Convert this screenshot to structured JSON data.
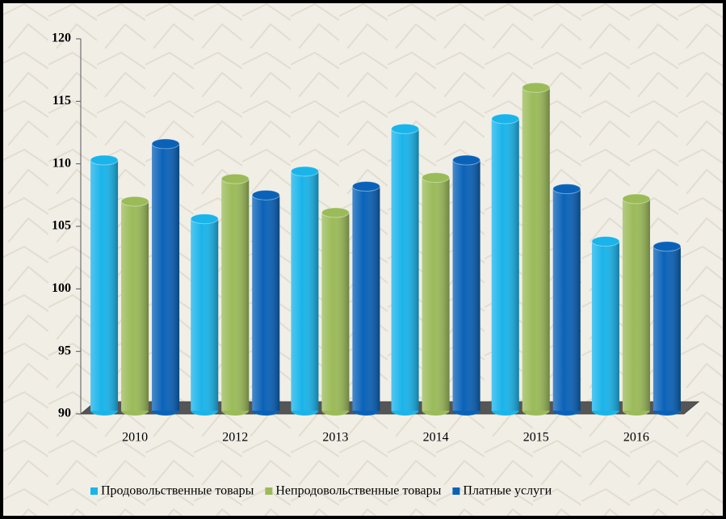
{
  "chart_data": {
    "type": "bar",
    "categories": [
      "2010",
      "2012",
      "2013",
      "2014",
      "2015",
      "2016"
    ],
    "series": [
      {
        "name": "Продовольственные товары",
        "color": "#1ab4ea",
        "values": [
          110.3,
          105.6,
          109.4,
          112.8,
          113.6,
          103.8
        ]
      },
      {
        "name": "Непродовольственные товары",
        "color": "#9bbb59",
        "values": [
          107.0,
          108.8,
          106.1,
          108.9,
          116.1,
          107.2
        ]
      },
      {
        "name": "Платные услуги",
        "color": "#0a62b8",
        "values": [
          111.6,
          107.5,
          108.2,
          110.3,
          108.0,
          103.4
        ]
      }
    ],
    "ylim": [
      90,
      120
    ],
    "yticks": [
      90,
      95,
      100,
      105,
      110,
      115,
      120
    ],
    "legend": "bottom"
  }
}
